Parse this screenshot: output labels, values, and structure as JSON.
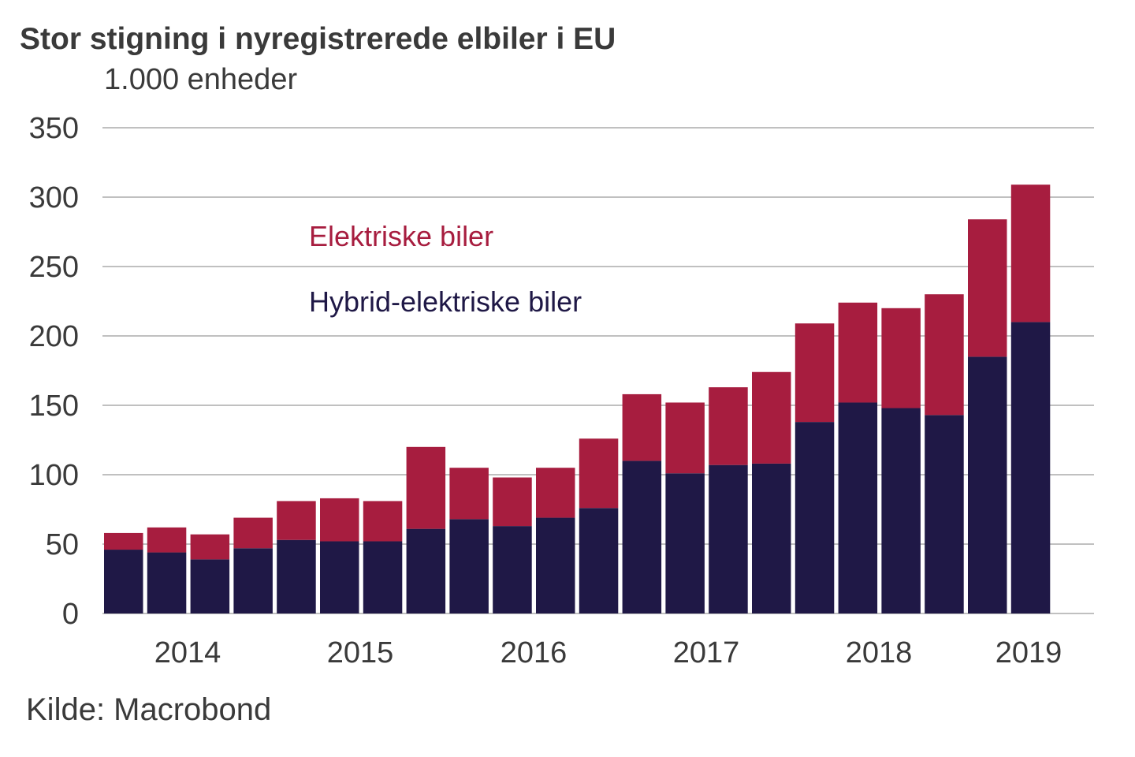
{
  "title": "Stor stigning i nyregistrerede elbiler i EU",
  "subtitle": "1.000 enheder",
  "source": "Kilde: Macrobond",
  "colors": {
    "electric": "#a71d3f",
    "hybrid": "#1f1846",
    "grid": "#9a9a9a",
    "text": "#3a3a3a"
  },
  "chart_data": {
    "type": "bar",
    "stacked": true,
    "ylabel": "1.000 enheder",
    "ylim": [
      0,
      350
    ],
    "yticks": [
      0,
      50,
      100,
      150,
      200,
      250,
      300,
      350
    ],
    "grid": true,
    "legend_placement": "upper-left inside plot",
    "year_labels": [
      "2014",
      "2015",
      "2016",
      "2017",
      "2018",
      "2019"
    ],
    "series": [
      {
        "name": "Hybrid-elektriske biler",
        "color": "#1f1846",
        "values": [
          46,
          44,
          39,
          47,
          53,
          52,
          52,
          61,
          68,
          63,
          69,
          76,
          110,
          101,
          107,
          108,
          138,
          152,
          148,
          143,
          185,
          210
        ]
      },
      {
        "name": "Elektriske biler",
        "color": "#a71d3f",
        "values": [
          12,
          18,
          18,
          22,
          28,
          31,
          29,
          59,
          37,
          35,
          36,
          50,
          48,
          51,
          56,
          66,
          71,
          72,
          72,
          87,
          99,
          99
        ]
      }
    ]
  }
}
